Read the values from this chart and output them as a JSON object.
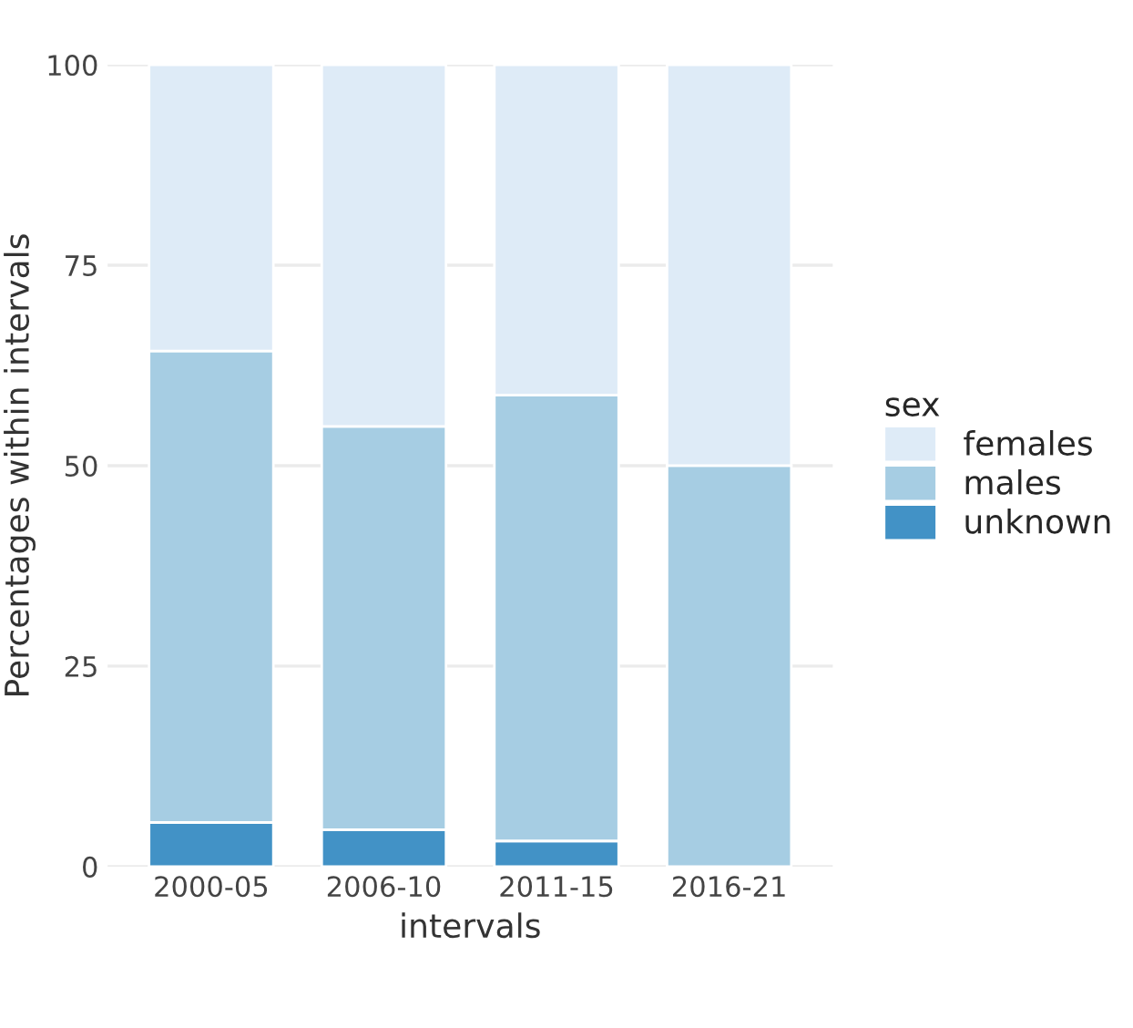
{
  "chart_data": {
    "type": "bar",
    "stacked": true,
    "xlabel": "intervals",
    "ylabel": "Percentages within intervals",
    "legend_title": "sex",
    "legend": "right",
    "grid": true,
    "categories": [
      "2000-05",
      "2006-10",
      "2011-15",
      "2016-21"
    ],
    "series": [
      {
        "name": "unknown",
        "color": "#4292c6",
        "values": [
          5.5,
          4.6,
          3.2,
          0
        ]
      },
      {
        "name": "males",
        "color": "#a6cde3",
        "values": [
          58.8,
          50.3,
          55.6,
          50
        ]
      },
      {
        "name": "females",
        "color": "#deebf7",
        "values": [
          35.7,
          45.1,
          41.2,
          50
        ]
      }
    ],
    "ylim": [
      0,
      100
    ],
    "yticks": [
      0,
      25,
      50,
      75,
      100
    ]
  }
}
